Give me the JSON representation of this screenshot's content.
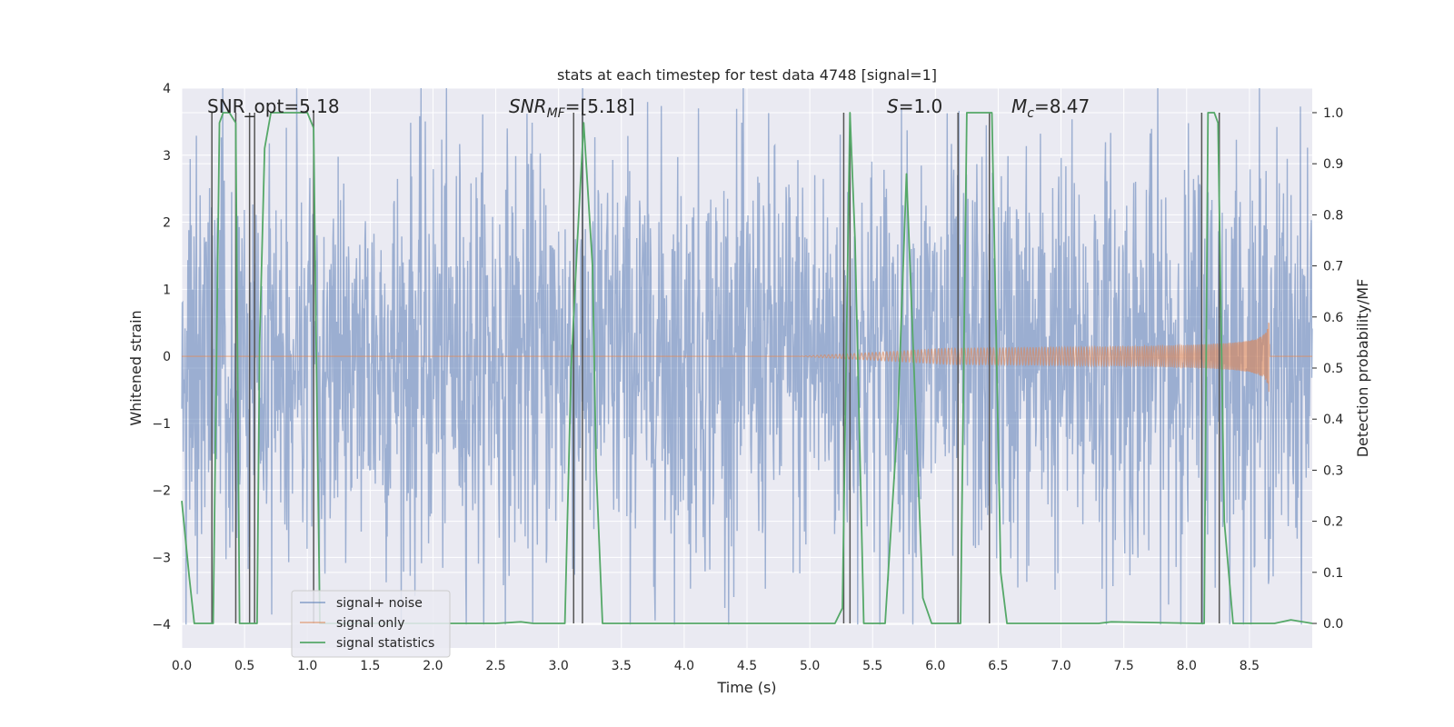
{
  "chart_data": {
    "type": "line",
    "title": "stats at each timestep for test data 4748 [signal=1]",
    "xlabel": "Time (s)",
    "ylabel": "Whitened strain",
    "y2label": "Detection probability/MF",
    "xlim": [
      0,
      9.0
    ],
    "ylim": [
      -4.35,
      4.0
    ],
    "y2lim": [
      -0.048,
      1.048
    ],
    "x_ticks": [
      0.0,
      0.5,
      1.0,
      1.5,
      2.0,
      2.5,
      3.0,
      3.5,
      4.0,
      4.5,
      5.0,
      5.5,
      6.0,
      6.5,
      7.0,
      7.5,
      8.0,
      8.5
    ],
    "x_tick_labels": [
      "0.0",
      "0.5",
      "1.0",
      "1.5",
      "2.0",
      "2.5",
      "3.0",
      "3.5",
      "4.0",
      "4.5",
      "5.0",
      "5.5",
      "6.0",
      "6.5",
      "7.0",
      "7.5",
      "8.0",
      "8.5"
    ],
    "y_ticks": [
      4,
      3,
      2,
      1,
      0,
      -1,
      -2,
      -3,
      -4
    ],
    "y_tick_labels": [
      "4",
      "3",
      "2",
      "1",
      "0",
      "−1",
      "−2",
      "−3",
      "−4"
    ],
    "y2_ticks": [
      1.0,
      0.9,
      0.8,
      0.7,
      0.6,
      0.5,
      0.4,
      0.3,
      0.2,
      0.1,
      0.0
    ],
    "y2_tick_labels": [
      "1.0",
      "0.9",
      "0.8",
      "0.7",
      "0.6",
      "0.5",
      "0.4",
      "0.3",
      "0.2",
      "0.1",
      "0.0"
    ],
    "annotations": {
      "snr_opt": "SNR_opt=5.18",
      "snr_mf_base": "SNR",
      "snr_mf_sub": "MF",
      "snr_mf_value": "=[5.18]",
      "s_label": "S",
      "s_value": "=1.0",
      "mc_base": "M",
      "mc_sub": "c",
      "mc_value": "=8.47"
    },
    "series": [
      {
        "name": "signal+ noise",
        "axis": "left",
        "color": "#4c72b0",
        "noise_sigma": 1.0,
        "noise_amplitude": 4.0
      },
      {
        "name": "signal only",
        "axis": "left",
        "color": "#dd8452",
        "chirp_start": 4.9,
        "chirp_end": 8.66,
        "peak_amplitude": 0.6
      },
      {
        "name": "signal statistics",
        "axis": "right",
        "color": "#55a868",
        "x": [
          0.0,
          0.06,
          0.1,
          0.2,
          0.25,
          0.3,
          0.33,
          0.38,
          0.43,
          0.46,
          0.49,
          0.6,
          0.62,
          0.66,
          0.71,
          0.75,
          1.0,
          1.05,
          1.07,
          1.1,
          1.15,
          2.5,
          2.7,
          2.8,
          3.05,
          3.1,
          3.15,
          3.2,
          3.27,
          3.3,
          3.35,
          3.5,
          5.0,
          5.2,
          5.26,
          5.32,
          5.36,
          5.43,
          5.45,
          5.6,
          5.7,
          5.77,
          5.9,
          5.97,
          6.2,
          6.25,
          6.45,
          6.52,
          6.57,
          7.3,
          7.4,
          8.1,
          8.14,
          8.17,
          8.22,
          8.25,
          8.3,
          8.37,
          8.5,
          8.7,
          8.83,
          9.0
        ],
        "y": [
          0.24,
          0.09,
          0.0,
          0.0,
          0.0,
          0.98,
          1.0,
          1.0,
          0.98,
          0.0,
          0.0,
          0.0,
          0.55,
          0.93,
          1.0,
          1.0,
          1.0,
          0.97,
          0.55,
          0.0,
          0.0,
          0.0,
          0.003,
          0.0,
          0.0,
          0.5,
          0.75,
          0.98,
          0.7,
          0.3,
          0.0,
          0.0,
          0.0,
          0.0,
          0.03,
          1.0,
          0.75,
          0.0,
          0.0,
          0.0,
          0.4,
          0.88,
          0.05,
          0.0,
          0.0,
          1.0,
          1.0,
          0.1,
          0.0,
          0.0,
          0.003,
          0.0,
          0.0,
          1.0,
          1.0,
          0.98,
          0.2,
          0.0,
          0.0,
          0.0,
          0.007,
          0.0
        ]
      }
    ],
    "vlines": [
      0.24,
      0.43,
      0.54,
      0.58,
      1.05,
      3.12,
      3.19,
      5.27,
      5.32,
      6.18,
      6.43,
      8.12,
      8.26
    ],
    "vline_color": "#555555",
    "legend": {
      "placement": "lower-left",
      "entries": [
        "signal+ noise",
        "signal only",
        "signal statistics"
      ]
    },
    "grid": true,
    "background": "#eaeaf2"
  }
}
